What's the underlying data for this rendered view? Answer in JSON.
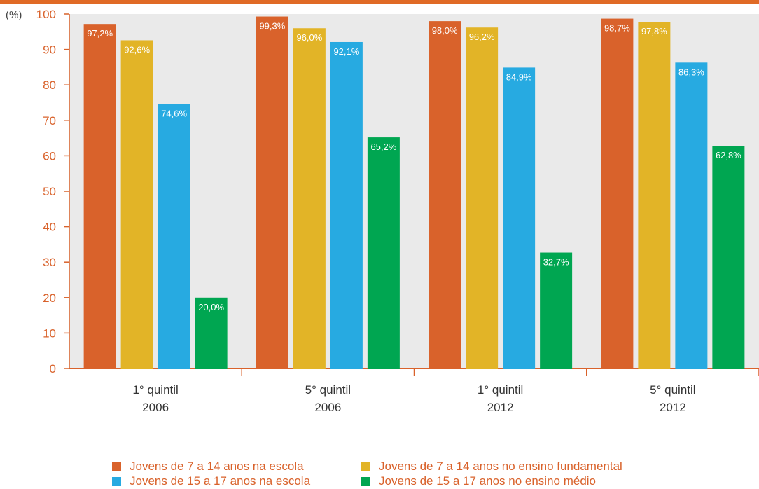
{
  "chart_data": {
    "type": "bar",
    "ylabel": "(%)",
    "ylim": [
      0,
      100
    ],
    "yticks": [
      0,
      10,
      20,
      30,
      40,
      50,
      60,
      70,
      80,
      90,
      100
    ],
    "grid": false,
    "legend_position": "bottom",
    "categories": [
      [
        "1° quintil",
        "2006"
      ],
      [
        "5° quintil",
        "2006"
      ],
      [
        "1° quintil",
        "2012"
      ],
      [
        "5° quintil",
        "2012"
      ]
    ],
    "series": [
      {
        "name": "Jovens de 7 a 14 anos na escola",
        "color": "#D9622B",
        "values": [
          97.2,
          99.3,
          98.0,
          98.7
        ],
        "labels": [
          "97,2%",
          "99,3%",
          "98,0%",
          "98,7%"
        ]
      },
      {
        "name": "Jovens de 7 a 14 anos no ensino fundamental",
        "color": "#E2B427",
        "values": [
          92.6,
          96.0,
          96.2,
          97.8
        ],
        "labels": [
          "92,6%",
          "96,0%",
          "96,2%",
          "97,8%"
        ]
      },
      {
        "name": "Jovens de 15 a 17 anos na escola",
        "color": "#27AAE1",
        "values": [
          74.6,
          92.1,
          84.9,
          86.3
        ],
        "labels": [
          "74,6%",
          "92,1%",
          "84,9%",
          "86,3%"
        ]
      },
      {
        "name": "Jovens de 15 a 17 anos no ensino médio",
        "color": "#00A651",
        "values": [
          20.0,
          65.2,
          32.7,
          62.8
        ],
        "labels": [
          "20,0%",
          "65,2%",
          "32,7%",
          "62,8%"
        ]
      }
    ]
  },
  "colors": {
    "accent": "#E06A26",
    "plot_background": "#EAEAEA",
    "axis_text": "#D9622B",
    "category_text": "#333333",
    "bar_label_text": "#FFFFFF"
  }
}
